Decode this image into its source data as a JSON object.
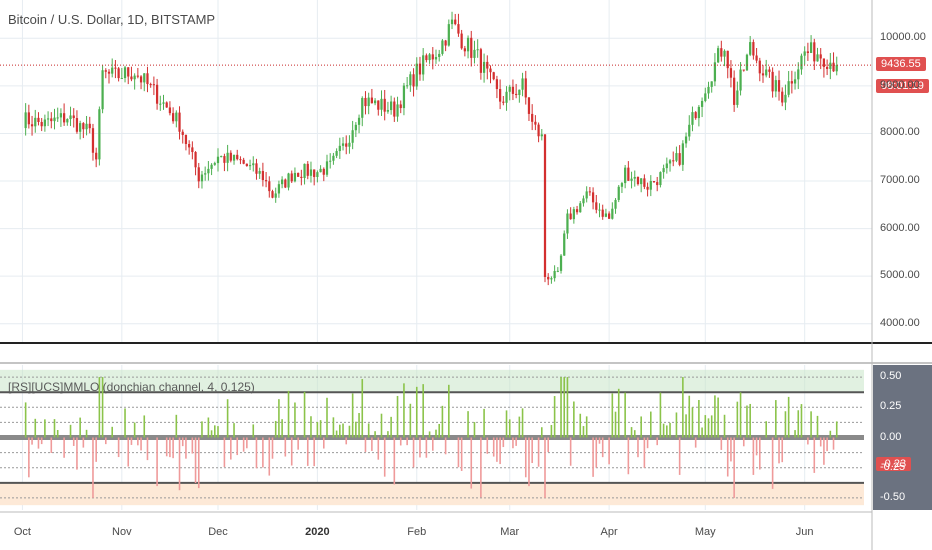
{
  "main": {
    "title": "Bitcoin / U.S. Dollar, 1D, BITSTAMP",
    "price_badge": "9436.55",
    "timer_badge": "08:01:19",
    "price_line": 9436.55,
    "colors": {
      "up": "#4caf50",
      "down": "#d32f2f",
      "badge": "#e05050",
      "grid": "#e6ecf1",
      "line": "#c62828"
    }
  },
  "oscillator": {
    "title": "[RS][UCS]MMLO (donchian channel, 4, 0.125)",
    "value_badge": "-0.23",
    "colors": {
      "positive": "#8bc34a",
      "negative": "#ef9a9a",
      "band_top": "#c8e6c9",
      "band_bottom": "#fde9d7",
      "value_badge_bg": "#e05050",
      "tick_badge_bg": "#6b7280"
    }
  },
  "chart_data": [
    {
      "type": "candlestick",
      "title": "Bitcoin / U.S. Dollar, 1D, BITSTAMP",
      "y_ticks": [
        "10000.00",
        "9000.00",
        "8000.00",
        "7000.00",
        "6000.00",
        "5000.00",
        "4000.00"
      ],
      "ylim": [
        3700,
        10700
      ],
      "x_ticks": [
        "Oct",
        "Nov",
        "Dec",
        "2020",
        "Feb",
        "Mar",
        "Apr",
        "May",
        "Jun"
      ],
      "close_path": [
        [
          "2019-10-01",
          8300
        ],
        [
          "2019-10-08",
          8200
        ],
        [
          "2019-10-15",
          8350
        ],
        [
          "2019-10-22",
          8000
        ],
        [
          "2019-10-24",
          7450
        ],
        [
          "2019-10-26",
          9250
        ],
        [
          "2019-10-30",
          9200
        ],
        [
          "2019-11-05",
          9300
        ],
        [
          "2019-11-12",
          8800
        ],
        [
          "2019-11-19",
          8200
        ],
        [
          "2019-11-25",
          7100
        ],
        [
          "2019-12-01",
          7500
        ],
        [
          "2019-12-08",
          7400
        ],
        [
          "2019-12-15",
          7100
        ],
        [
          "2019-12-18",
          6700
        ],
        [
          "2019-12-25",
          7200
        ],
        [
          "2020-01-01",
          7200
        ],
        [
          "2020-01-05",
          7300
        ],
        [
          "2020-01-10",
          7800
        ],
        [
          "2020-01-15",
          8700
        ],
        [
          "2020-01-20",
          8600
        ],
        [
          "2020-01-25",
          8500
        ],
        [
          "2020-02-01",
          9300
        ],
        [
          "2020-02-08",
          9800
        ],
        [
          "2020-02-12",
          10300
        ],
        [
          "2020-02-16",
          9900
        ],
        [
          "2020-02-20",
          9600
        ],
        [
          "2020-02-27",
          8700
        ],
        [
          "2020-03-05",
          9000
        ],
        [
          "2020-03-08",
          8200
        ],
        [
          "2020-03-11",
          7900
        ],
        [
          "2020-03-12",
          5000
        ],
        [
          "2020-03-16",
          5000
        ],
        [
          "2020-03-19",
          6200
        ],
        [
          "2020-03-25",
          6700
        ],
        [
          "2020-04-01",
          6200
        ],
        [
          "2020-04-06",
          7200
        ],
        [
          "2020-04-13",
          6900
        ],
        [
          "2020-04-17",
          7100
        ],
        [
          "2020-04-23",
          7500
        ],
        [
          "2020-04-29",
          8700
        ],
        [
          "2020-05-07",
          9900
        ],
        [
          "2020-05-10",
          8700
        ],
        [
          "2020-05-15",
          9800
        ],
        [
          "2020-05-21",
          9100
        ],
        [
          "2020-05-25",
          8800
        ],
        [
          "2020-06-01",
          9700
        ],
        [
          "2020-06-05",
          9700
        ],
        [
          "2020-06-11",
          9436.55
        ]
      ]
    },
    {
      "type": "histogram",
      "title": "[RS][UCS]MMLO (donchian channel, 4, 0.125)",
      "y_ticks": [
        "0.50",
        "0.25",
        "0.00",
        "-0.25",
        "-0.50"
      ],
      "ylim": [
        -0.6,
        0.6
      ],
      "levels": [
        0.5,
        0.375,
        0.25,
        0.125,
        0,
        -0.125,
        -0.25,
        -0.375,
        -0.5
      ],
      "last_value": -0.23
    }
  ]
}
